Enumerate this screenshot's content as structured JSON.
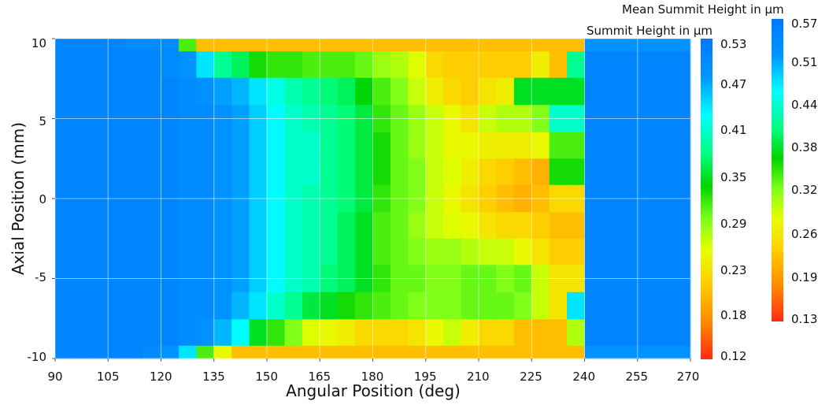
{
  "chart_data": {
    "type": "heatmap",
    "xlabel": "Angular Position (deg)",
    "ylabel": "Axial Position (mm)",
    "xlim": [
      90,
      270
    ],
    "ylim": [
      -10,
      10
    ],
    "x_ticks": [
      "90",
      "105",
      "120",
      "135",
      "150",
      "165",
      "180",
      "195",
      "210",
      "225",
      "240",
      "255",
      "270"
    ],
    "y_ticks": [
      "10",
      "5",
      "0",
      "-5",
      "-10"
    ],
    "grid": true,
    "x_centers_deg": [
      92.5,
      97.5,
      102.5,
      107.5,
      112.5,
      117.5,
      122.5,
      127.5,
      132.5,
      137.5,
      142.5,
      147.5,
      152.5,
      157.5,
      162.5,
      167.5,
      172.5,
      177.5,
      182.5,
      187.5,
      192.5,
      197.5,
      202.5,
      207.5,
      212.5,
      217.5,
      222.5,
      227.5,
      232.5,
      237.5,
      242.5,
      247.5,
      252.5,
      257.5,
      262.5,
      267.5
    ],
    "y_centers_mm": [
      10.0,
      8.4,
      6.7,
      5.0,
      3.3,
      1.7,
      0.0,
      -1.7,
      -3.3,
      -5.0,
      -6.7,
      -8.4,
      -10.0
    ],
    "z_unit": "µm",
    "z_values": [
      [
        0.51,
        0.51,
        0.51,
        0.51,
        0.5,
        0.5,
        0.5,
        0.32,
        0.2,
        0.2,
        0.2,
        0.2,
        0.2,
        0.2,
        0.2,
        0.2,
        0.2,
        0.2,
        0.2,
        0.2,
        0.2,
        0.2,
        0.2,
        0.2,
        0.2,
        0.2,
        0.2,
        0.2,
        0.2,
        0.2,
        0.49,
        0.49,
        0.49,
        0.49,
        0.49,
        0.49
      ],
      [
        0.51,
        0.51,
        0.51,
        0.51,
        0.51,
        0.51,
        0.5,
        0.49,
        0.45,
        0.4,
        0.38,
        0.34,
        0.33,
        0.33,
        0.32,
        0.32,
        0.32,
        0.31,
        0.29,
        0.28,
        0.26,
        0.22,
        0.21,
        0.21,
        0.21,
        0.21,
        0.21,
        0.24,
        0.2,
        0.4,
        0.51,
        0.51,
        0.51,
        0.51,
        0.51,
        0.51
      ],
      [
        0.51,
        0.51,
        0.51,
        0.51,
        0.51,
        0.51,
        0.51,
        0.5,
        0.49,
        0.48,
        0.47,
        0.45,
        0.43,
        0.41,
        0.4,
        0.39,
        0.38,
        0.35,
        0.32,
        0.3,
        0.27,
        0.24,
        0.22,
        0.21,
        0.23,
        0.24,
        0.36,
        0.36,
        0.36,
        0.36,
        0.51,
        0.51,
        0.51,
        0.51,
        0.51,
        0.51
      ],
      [
        0.51,
        0.51,
        0.51,
        0.51,
        0.51,
        0.51,
        0.51,
        0.5,
        0.5,
        0.49,
        0.48,
        0.46,
        0.44,
        0.42,
        0.41,
        0.4,
        0.39,
        0.37,
        0.33,
        0.31,
        0.29,
        0.27,
        0.25,
        0.23,
        0.27,
        0.28,
        0.28,
        0.3,
        0.42,
        0.42,
        0.51,
        0.51,
        0.51,
        0.51,
        0.51,
        0.51
      ],
      [
        0.51,
        0.51,
        0.51,
        0.51,
        0.51,
        0.51,
        0.51,
        0.5,
        0.5,
        0.49,
        0.48,
        0.46,
        0.44,
        0.42,
        0.42,
        0.4,
        0.39,
        0.37,
        0.34,
        0.31,
        0.29,
        0.27,
        0.25,
        0.25,
        0.24,
        0.24,
        0.24,
        0.25,
        0.32,
        0.32,
        0.51,
        0.51,
        0.51,
        0.51,
        0.51,
        0.51
      ],
      [
        0.51,
        0.51,
        0.51,
        0.51,
        0.51,
        0.51,
        0.51,
        0.5,
        0.5,
        0.49,
        0.48,
        0.46,
        0.44,
        0.42,
        0.42,
        0.4,
        0.39,
        0.37,
        0.34,
        0.31,
        0.3,
        0.27,
        0.26,
        0.24,
        0.22,
        0.21,
        0.2,
        0.19,
        0.34,
        0.34,
        0.51,
        0.51,
        0.51,
        0.51,
        0.51,
        0.51
      ],
      [
        0.51,
        0.51,
        0.51,
        0.51,
        0.51,
        0.51,
        0.51,
        0.5,
        0.5,
        0.49,
        0.48,
        0.46,
        0.44,
        0.42,
        0.41,
        0.4,
        0.39,
        0.37,
        0.33,
        0.31,
        0.3,
        0.27,
        0.25,
        0.23,
        0.21,
        0.2,
        0.19,
        0.2,
        0.22,
        0.22,
        0.51,
        0.51,
        0.51,
        0.51,
        0.51,
        0.51
      ],
      [
        0.51,
        0.51,
        0.51,
        0.51,
        0.51,
        0.51,
        0.51,
        0.5,
        0.5,
        0.49,
        0.48,
        0.46,
        0.44,
        0.42,
        0.41,
        0.4,
        0.38,
        0.36,
        0.32,
        0.31,
        0.29,
        0.27,
        0.26,
        0.25,
        0.23,
        0.22,
        0.22,
        0.21,
        0.2,
        0.2,
        0.51,
        0.51,
        0.51,
        0.51,
        0.51,
        0.51
      ],
      [
        0.51,
        0.51,
        0.51,
        0.51,
        0.51,
        0.51,
        0.51,
        0.5,
        0.5,
        0.49,
        0.48,
        0.46,
        0.44,
        0.42,
        0.41,
        0.4,
        0.38,
        0.36,
        0.32,
        0.31,
        0.3,
        0.29,
        0.29,
        0.28,
        0.27,
        0.27,
        0.25,
        0.23,
        0.21,
        0.21,
        0.51,
        0.51,
        0.51,
        0.51,
        0.51,
        0.51
      ],
      [
        0.51,
        0.51,
        0.51,
        0.51,
        0.51,
        0.51,
        0.51,
        0.5,
        0.5,
        0.49,
        0.48,
        0.46,
        0.44,
        0.42,
        0.41,
        0.39,
        0.38,
        0.36,
        0.33,
        0.31,
        0.31,
        0.3,
        0.3,
        0.31,
        0.31,
        0.3,
        0.31,
        0.27,
        0.23,
        0.23,
        0.51,
        0.51,
        0.51,
        0.51,
        0.51,
        0.51
      ],
      [
        0.51,
        0.51,
        0.51,
        0.51,
        0.51,
        0.51,
        0.51,
        0.5,
        0.5,
        0.49,
        0.47,
        0.45,
        0.42,
        0.4,
        0.37,
        0.36,
        0.34,
        0.33,
        0.32,
        0.31,
        0.3,
        0.3,
        0.3,
        0.31,
        0.31,
        0.31,
        0.3,
        0.27,
        0.23,
        0.45,
        0.51,
        0.51,
        0.51,
        0.51,
        0.51,
        0.51
      ],
      [
        0.51,
        0.51,
        0.51,
        0.51,
        0.51,
        0.51,
        0.51,
        0.5,
        0.49,
        0.47,
        0.44,
        0.36,
        0.33,
        0.3,
        0.26,
        0.25,
        0.24,
        0.22,
        0.22,
        0.22,
        0.23,
        0.25,
        0.27,
        0.24,
        0.22,
        0.22,
        0.2,
        0.2,
        0.2,
        0.28,
        0.51,
        0.51,
        0.51,
        0.51,
        0.51,
        0.51
      ],
      [
        0.51,
        0.51,
        0.51,
        0.51,
        0.51,
        0.5,
        0.49,
        0.45,
        0.32,
        0.25,
        0.2,
        0.2,
        0.2,
        0.2,
        0.2,
        0.2,
        0.2,
        0.2,
        0.2,
        0.2,
        0.2,
        0.2,
        0.2,
        0.2,
        0.2,
        0.2,
        0.2,
        0.2,
        0.2,
        0.2,
        0.49,
        0.49,
        0.49,
        0.49,
        0.49,
        0.49
      ]
    ],
    "colorbars": [
      {
        "title": "Summit Height in µm",
        "labels": [
          "0.53",
          "0.47",
          "0.41",
          "0.35",
          "0.29",
          "0.23",
          "0.18",
          "0.12"
        ],
        "min": 0.12,
        "max": 0.53
      },
      {
        "title": "Mean Summit Height in µm",
        "labels": [
          "0.57",
          "0.51",
          "0.44",
          "0.38",
          "0.32",
          "0.26",
          "0.19",
          "0.13"
        ],
        "min": 0.13,
        "max": 0.57
      }
    ],
    "colormap": [
      "#ff2a14",
      "#ff8c00",
      "#ffd000",
      "#e6ff00",
      "#7cff1a",
      "#00d400",
      "#00ff80",
      "#00ffff",
      "#0096ff",
      "#0078ff"
    ]
  }
}
